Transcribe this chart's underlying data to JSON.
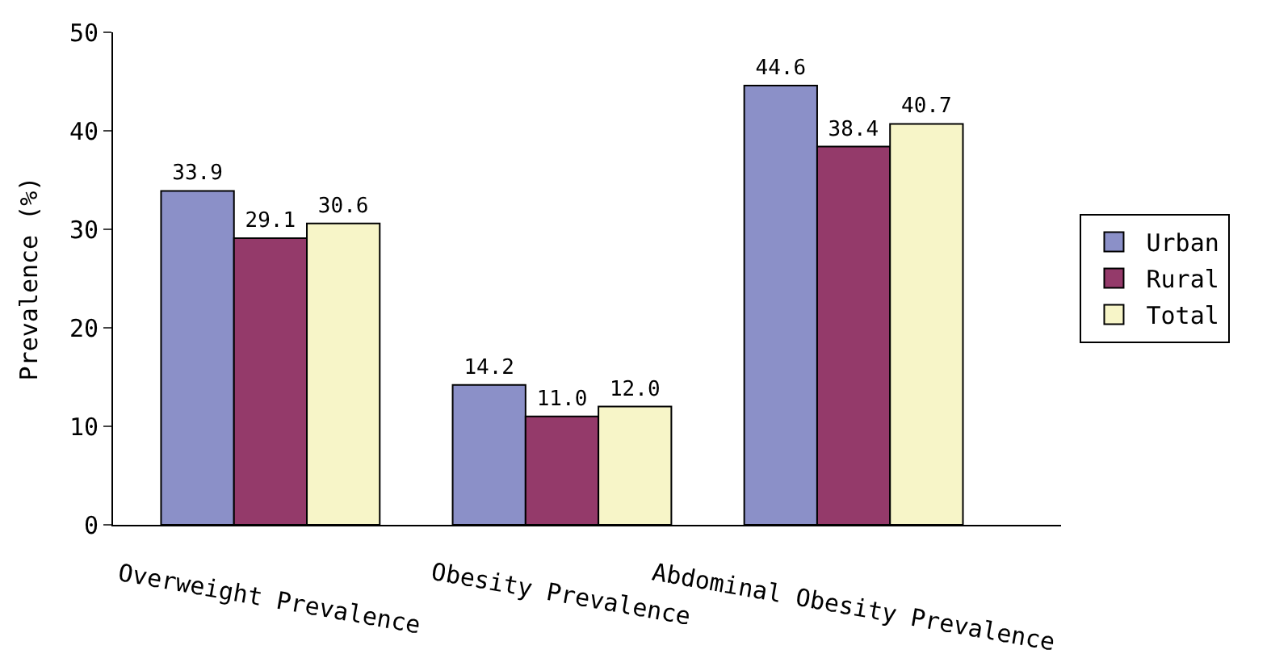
{
  "chart_data": {
    "type": "bar",
    "ylabel": "Prevalence (%)",
    "categories": [
      "Overweight Prevalence",
      "Obesity Prevalence",
      "Abdominal Obesity Prevalence"
    ],
    "series": [
      {
        "name": "Urban",
        "color": "#8b90c8",
        "values": [
          33.9,
          14.2,
          44.6
        ],
        "value_labels": [
          "33.9",
          "14.2",
          "44.6"
        ]
      },
      {
        "name": "Rural",
        "color": "#943a6a",
        "values": [
          29.1,
          11.0,
          38.4
        ],
        "value_labels": [
          "29.1",
          "11.0",
          "38.4"
        ]
      },
      {
        "name": "Total",
        "color": "#f7f5c8",
        "values": [
          30.6,
          12.0,
          40.7
        ],
        "value_labels": [
          "30.6",
          "12.0",
          "40.7"
        ]
      }
    ],
    "ylim": [
      0,
      50
    ],
    "yticks": [
      0,
      10,
      20,
      30,
      40,
      50
    ],
    "grid": false,
    "legend": "right"
  }
}
